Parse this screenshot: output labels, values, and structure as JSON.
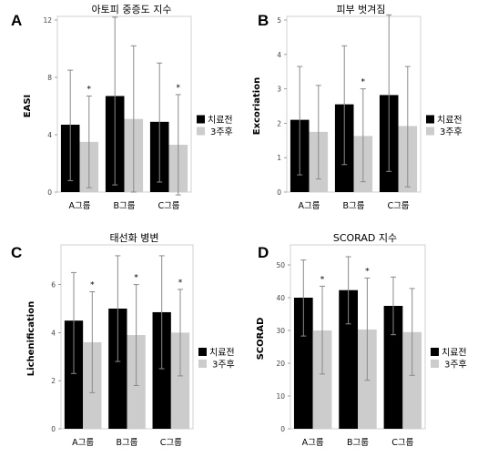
{
  "chart_data": [
    {
      "panel": "A",
      "type": "bar",
      "title": "아토피 중증도 지수",
      "ylabel": "EASI",
      "xlabel": "",
      "categories": [
        "A그룹",
        "B그룹",
        "C그룹"
      ],
      "series": [
        {
          "name": "치료전",
          "color": "#000000",
          "values": [
            4.7,
            6.7,
            4.9
          ],
          "err_upper": [
            8.5,
            12.2,
            9.0
          ],
          "err_lower": [
            0.8,
            0.5,
            0.7
          ]
        },
        {
          "name": "3주후",
          "color": "#cccccc",
          "values": [
            3.5,
            5.1,
            3.3
          ],
          "err_upper": [
            6.7,
            10.2,
            6.8
          ],
          "err_lower": [
            0.3,
            0.0,
            -0.2
          ]
        }
      ],
      "significance": [
        false,
        true,
        false,
        false,
        false,
        true
      ],
      "ylim": [
        0,
        12
      ],
      "yticks": [
        0,
        4,
        8,
        12
      ],
      "legend_position": "right"
    },
    {
      "panel": "B",
      "type": "bar",
      "title": "피부 벗겨짐",
      "ylabel": "Excoriation",
      "xlabel": "",
      "categories": [
        "A그룹",
        "B그룹",
        "C그룹"
      ],
      "series": [
        {
          "name": "치료전",
          "color": "#000000",
          "values": [
            2.1,
            2.55,
            2.82
          ],
          "err_upper": [
            3.65,
            4.25,
            5.15
          ],
          "err_lower": [
            0.5,
            0.8,
            0.6
          ]
        },
        {
          "name": "3주후",
          "color": "#cccccc",
          "values": [
            1.75,
            1.63,
            1.92
          ],
          "err_upper": [
            3.1,
            3.0,
            3.65
          ],
          "err_lower": [
            0.38,
            0.3,
            0.15
          ]
        }
      ],
      "significance": [
        false,
        false,
        false,
        true,
        false,
        false
      ],
      "ylim": [
        0,
        5
      ],
      "yticks": [
        0,
        1,
        2,
        3,
        4,
        5
      ],
      "legend_position": "right"
    },
    {
      "panel": "C",
      "type": "bar",
      "title": "태선화 병변",
      "ylabel": "Lichenification",
      "xlabel": "",
      "categories": [
        "A그룹",
        "B그룹",
        "C그룹"
      ],
      "series": [
        {
          "name": "치료전",
          "color": "#000000",
          "values": [
            4.5,
            5.0,
            4.85
          ],
          "err_upper": [
            6.5,
            7.2,
            7.2
          ],
          "err_lower": [
            2.3,
            2.8,
            2.5
          ]
        },
        {
          "name": "3주후",
          "color": "#cccccc",
          "values": [
            3.6,
            3.9,
            4.0
          ],
          "err_upper": [
            5.7,
            6.0,
            5.8
          ],
          "err_lower": [
            1.5,
            1.8,
            2.2
          ]
        }
      ],
      "significance": [
        false,
        true,
        false,
        true,
        false,
        true
      ],
      "ylim": [
        0,
        7.5
      ],
      "yticks": [
        0,
        2,
        4,
        6
      ],
      "legend_position": "right"
    },
    {
      "panel": "D",
      "type": "bar",
      "title": "SCORAD 지수",
      "ylabel": "SCORAD",
      "xlabel": "",
      "categories": [
        "A그룹",
        "B그룹",
        "C그룹"
      ],
      "series": [
        {
          "name": "치료전",
          "color": "#000000",
          "values": [
            40.0,
            42.3,
            37.5
          ],
          "err_upper": [
            51.5,
            52.5,
            46.3
          ],
          "err_lower": [
            28.3,
            32.0,
            28.7
          ]
        },
        {
          "name": "3주후",
          "color": "#cccccc",
          "values": [
            30.0,
            30.3,
            29.5
          ],
          "err_upper": [
            43.5,
            46.0,
            42.8
          ],
          "err_lower": [
            16.7,
            14.8,
            16.3
          ]
        }
      ],
      "significance": [
        false,
        true,
        false,
        true,
        false,
        false
      ],
      "ylim": [
        0,
        55
      ],
      "yticks": [
        0,
        10,
        20,
        30,
        40,
        50
      ],
      "legend_position": "right"
    }
  ]
}
